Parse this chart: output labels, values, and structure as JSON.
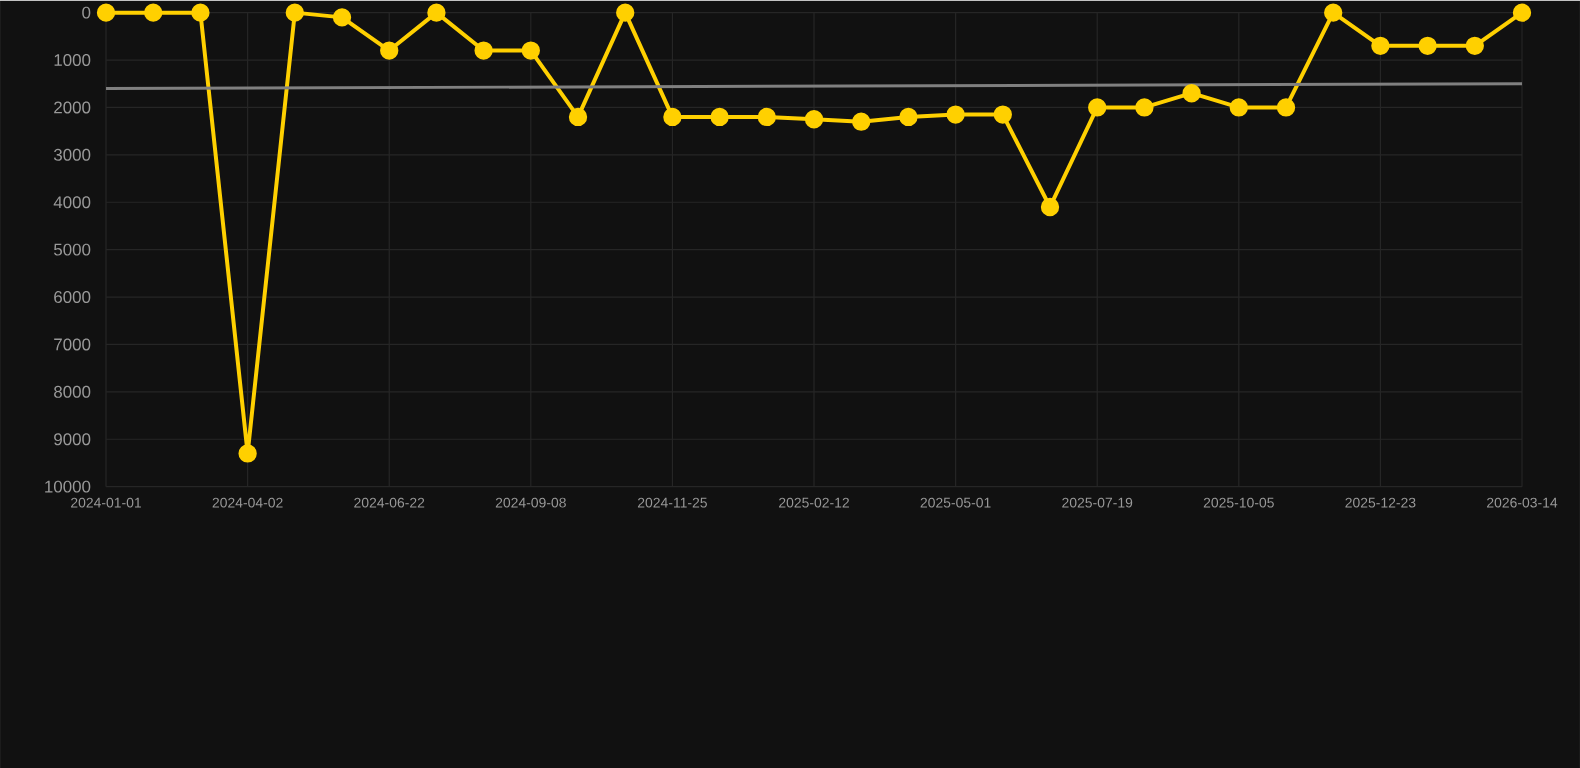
{
  "chart_data": {
    "type": "line",
    "categories": [
      "2024-01-01",
      null,
      null,
      "2024-04-02",
      null,
      null,
      "2024-06-22",
      null,
      null,
      "2024-09-08",
      null,
      null,
      "2024-11-25",
      null,
      null,
      "2025-02-12",
      null,
      null,
      "2025-05-01",
      null,
      null,
      "2025-07-19",
      null,
      null,
      "2025-10-05",
      null,
      null,
      "2025-12-23",
      null,
      null,
      "2026-03-14"
    ],
    "series": [
      {
        "color": "#ffd000",
        "values": [
          0,
          0,
          0,
          9300,
          0,
          100,
          800,
          0,
          800,
          800,
          2200,
          0,
          2200,
          2200,
          2200,
          2250,
          2300,
          2200,
          2150,
          2150,
          4100,
          2000,
          2000,
          1700,
          2000,
          2000,
          0,
          700,
          700,
          700,
          0
        ]
      },
      {
        "type": "line",
        "color": "#808080",
        "marker": "none",
        "values": [
          1600,
          null,
          null,
          null,
          null,
          null,
          null,
          null,
          null,
          null,
          null,
          null,
          null,
          null,
          null,
          null,
          null,
          null,
          null,
          null,
          null,
          null,
          null,
          null,
          null,
          null,
          null,
          null,
          null,
          null,
          1500
        ]
      }
    ],
    "ylim": [
      10000,
      0
    ],
    "yticks": [
      0,
      1000,
      2000,
      3000,
      4000,
      5000,
      6000,
      7000,
      8000,
      9000,
      10000
    ],
    "grid": true,
    "marker": "circle",
    "line_style": "solid"
  }
}
